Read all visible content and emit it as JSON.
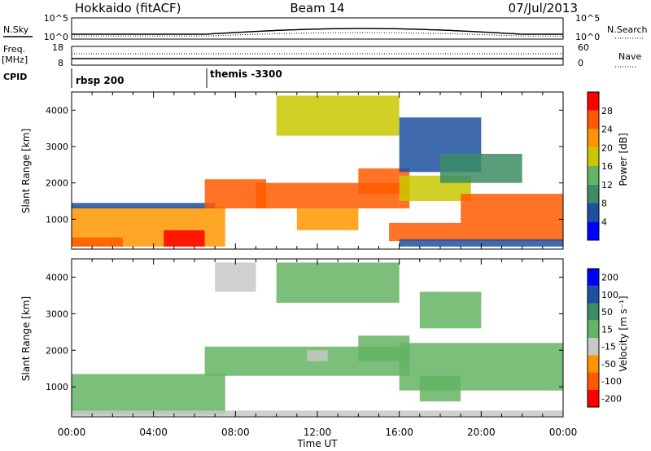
{
  "header": {
    "station": "Hokkaido (fitACF)",
    "beam": "Beam 14",
    "date": "07/Jul/2013"
  },
  "params": {
    "nsky_label": "N.Sky",
    "nsky_ticks": [
      "10^5",
      "10^0"
    ],
    "nsearch_label": "N.Search",
    "nsearch_ticks": [
      "10^5",
      "10^0"
    ],
    "freq_label": "Freq.",
    "freq_unit": "[MHz]",
    "freq_ticks": [
      "18",
      "8"
    ],
    "nave_label": "Nave",
    "nave_ticks": [
      "60",
      "0"
    ],
    "cpid_label": "CPID",
    "cpid_segments": [
      {
        "label": "rbsp 200",
        "start_hour": 0
      },
      {
        "label": "themis -3300",
        "start_hour": 6.5
      }
    ]
  },
  "colors": {
    "power_scale": [
      "#0000ff",
      "#1e50a0",
      "#3c8c64",
      "#64b464",
      "#c8c800",
      "#ff9600",
      "#ff5a00",
      "#ff0000"
    ],
    "velocity_scale": [
      "#0000ff",
      "#1e50a0",
      "#3c8c64",
      "#64b464",
      "#c8c8c8",
      "#ff9600",
      "#ff5a00",
      "#ff0000"
    ]
  },
  "chart_data": [
    {
      "type": "heatmap",
      "name": "power",
      "ylabel": "Slant Range [km]",
      "xlabel": "Time UT",
      "xlim": [
        "00:00",
        "24:00"
      ],
      "xticks": [
        "00:00",
        "04:00",
        "08:00",
        "12:00",
        "16:00",
        "20:00",
        "00:00"
      ],
      "ylim": [
        180,
        4500
      ],
      "yticks": [
        1000,
        2000,
        3000,
        4000
      ],
      "colorbar": {
        "label": "Power [dB]",
        "ticks": [
          4,
          8,
          12,
          16,
          20,
          24,
          28
        ],
        "range": [
          0,
          32
        ]
      },
      "regions": [
        {
          "t0": 0.0,
          "t1": 7.5,
          "r0": 250,
          "r1": 1350,
          "value": 22
        },
        {
          "t0": 4.5,
          "t1": 6.5,
          "r0": 250,
          "r1": 700,
          "value": 30
        },
        {
          "t0": 0.0,
          "t1": 2.5,
          "r0": 250,
          "r1": 500,
          "value": 26
        },
        {
          "t0": 0.0,
          "t1": 7.0,
          "r0": 1300,
          "r1": 1450,
          "value": 6
        },
        {
          "t0": 6.5,
          "t1": 9.5,
          "r0": 1300,
          "r1": 2100,
          "value": 24
        },
        {
          "t0": 9.0,
          "t1": 16.5,
          "r0": 1300,
          "r1": 2000,
          "value": 26
        },
        {
          "t0": 11.0,
          "t1": 14.0,
          "r0": 700,
          "r1": 1300,
          "value": 22
        },
        {
          "t0": 14.0,
          "t1": 16.5,
          "r0": 1700,
          "r1": 2400,
          "value": 27
        },
        {
          "t0": 16.0,
          "t1": 19.5,
          "r0": 1500,
          "r1": 2200,
          "value": 18
        },
        {
          "t0": 19.0,
          "t1": 24.0,
          "r0": 900,
          "r1": 1700,
          "value": 26
        },
        {
          "t0": 15.5,
          "t1": 24.0,
          "r0": 400,
          "r1": 900,
          "value": 24
        },
        {
          "t0": 16.0,
          "t1": 24.0,
          "r0": 250,
          "r1": 450,
          "value": 6
        },
        {
          "t0": 10.0,
          "t1": 16.0,
          "r0": 3300,
          "r1": 4400,
          "value": 17
        },
        {
          "t0": 16.0,
          "t1": 20.0,
          "r0": 2300,
          "r1": 3800,
          "value": 6
        },
        {
          "t0": 18.0,
          "t1": 22.0,
          "r0": 2000,
          "r1": 2800,
          "value": 10
        }
      ]
    },
    {
      "type": "heatmap",
      "name": "velocity",
      "ylabel": "Slant Range [km]",
      "xlabel": "Time UT",
      "xlim": [
        "00:00",
        "24:00"
      ],
      "xticks": [
        "00:00",
        "04:00",
        "08:00",
        "12:00",
        "16:00",
        "20:00",
        "00:00"
      ],
      "ylim": [
        180,
        4500
      ],
      "yticks": [
        1000,
        2000,
        3000,
        4000
      ],
      "colorbar": {
        "label": "Velocity [m s⁻¹]",
        "ticks": [
          200,
          100,
          50,
          15,
          -15,
          -50,
          -100,
          -200
        ],
        "range": [
          -250,
          250
        ]
      },
      "regions": [
        {
          "t0": 0.0,
          "t1": 7.5,
          "r0": 250,
          "r1": 1350,
          "value": 0
        },
        {
          "t0": 6.5,
          "t1": 16.5,
          "r0": 1300,
          "r1": 2100,
          "value": 0
        },
        {
          "t0": 14.0,
          "t1": 16.5,
          "r0": 1700,
          "r1": 2400,
          "value": 0
        },
        {
          "t0": 16.0,
          "t1": 24.0,
          "r0": 900,
          "r1": 2200,
          "value": 0
        },
        {
          "t0": 17.0,
          "t1": 19.0,
          "r0": 600,
          "r1": 1300,
          "value": 60
        },
        {
          "t0": 10.0,
          "t1": 16.0,
          "r0": 3300,
          "r1": 4400,
          "value": 0
        },
        {
          "t0": 17.0,
          "t1": 20.0,
          "r0": 2600,
          "r1": 3600,
          "value": 60
        },
        {
          "t0": 7.0,
          "t1": 9.0,
          "r0": 3600,
          "r1": 4400,
          "value": -40
        },
        {
          "t0": 11.5,
          "t1": 12.5,
          "r0": 1700,
          "r1": 2000,
          "value": -60
        },
        {
          "t0": 0.0,
          "t1": 24.0,
          "r0": 200,
          "r1": 350,
          "value": -40
        }
      ]
    }
  ]
}
